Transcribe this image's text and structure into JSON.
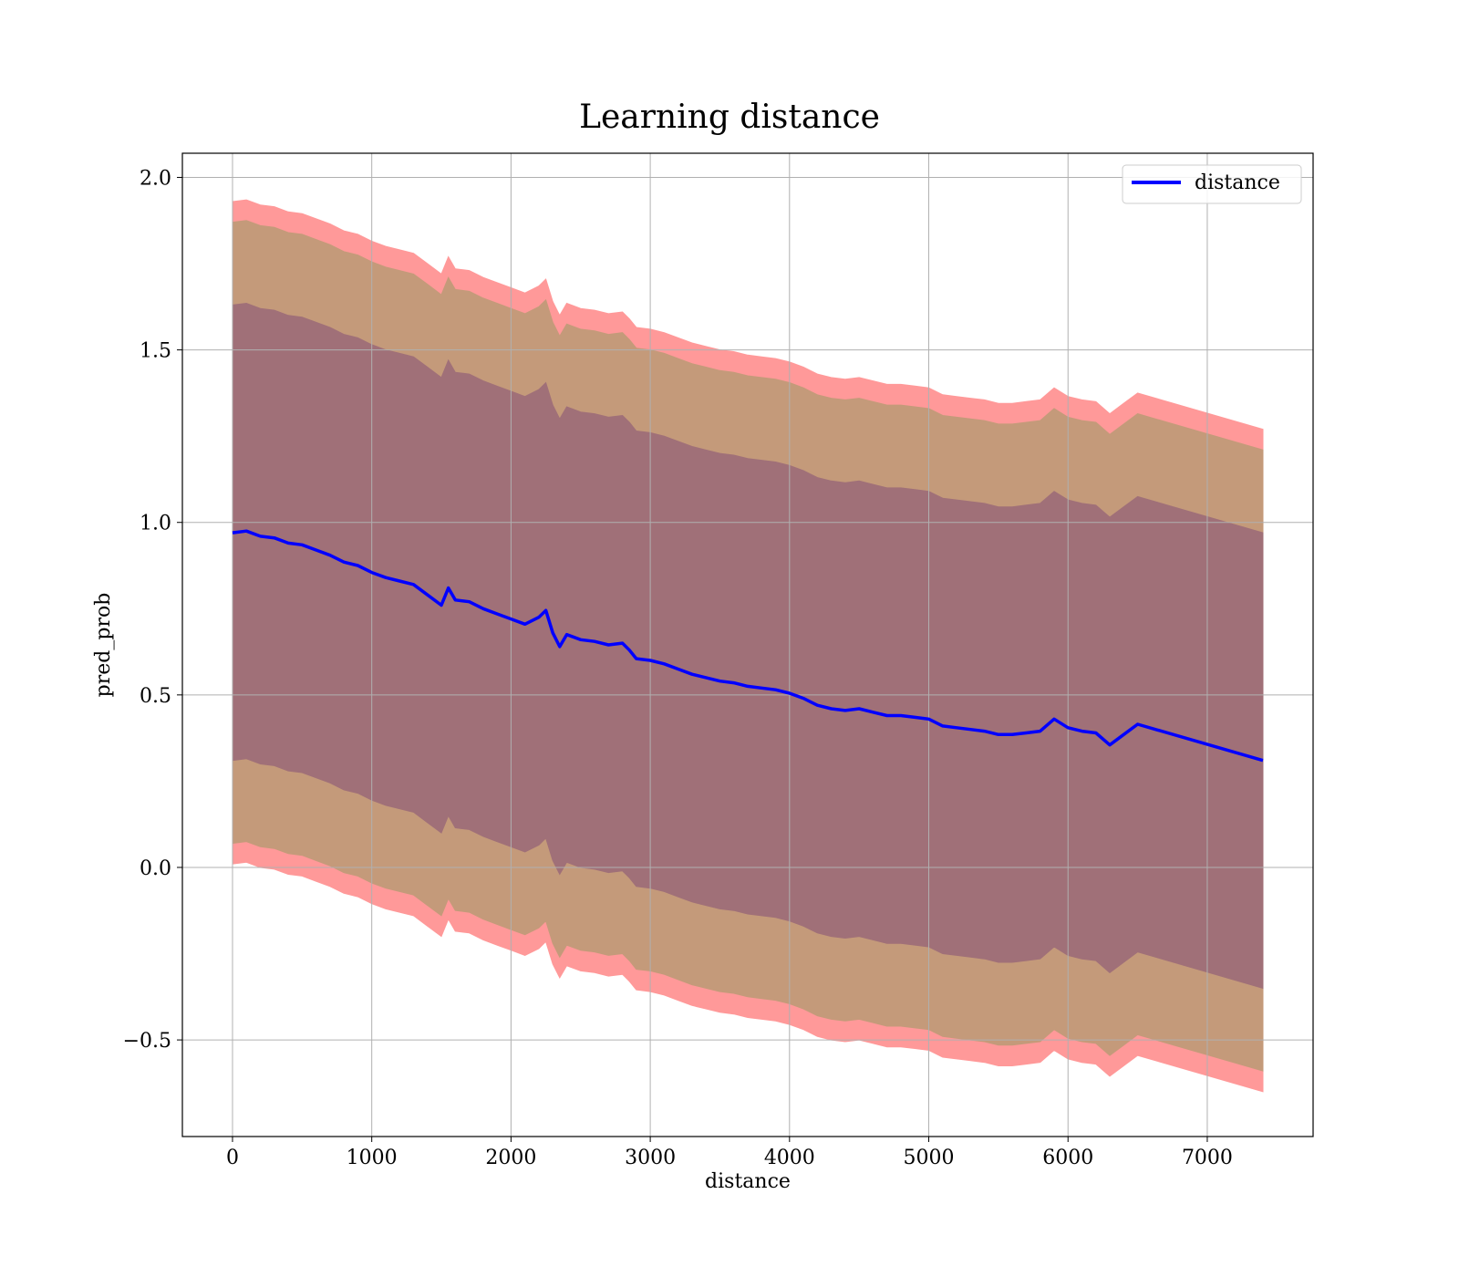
{
  "chart_data": {
    "type": "line",
    "title": "Learning distance",
    "xlabel": "distance",
    "ylabel": "pred_prob",
    "xlim": [
      -360,
      7760
    ],
    "ylim": [
      -0.78,
      2.07
    ],
    "xticks": [
      0,
      1000,
      2000,
      3000,
      4000,
      5000,
      6000,
      7000
    ],
    "yticks": [
      -0.5,
      0.0,
      0.5,
      1.0,
      1.5,
      2.0
    ],
    "xtick_labels": [
      "0",
      "1000",
      "2000",
      "3000",
      "4000",
      "5000",
      "6000",
      "7000"
    ],
    "ytick_labels": [
      "−0.5",
      "0.0",
      "0.5",
      "1.0",
      "1.5",
      "2.0"
    ],
    "grid": true,
    "legend_position": "top-right",
    "series": [
      {
        "name": "distance",
        "color": "#0000ff",
        "x": [
          0,
          100,
          200,
          300,
          400,
          500,
          600,
          700,
          800,
          900,
          1000,
          1100,
          1200,
          1300,
          1400,
          1500,
          1550,
          1600,
          1700,
          1800,
          1900,
          2000,
          2100,
          2200,
          2250,
          2300,
          2350,
          2400,
          2500,
          2600,
          2700,
          2800,
          2850,
          2900,
          3000,
          3100,
          3200,
          3300,
          3400,
          3500,
          3600,
          3700,
          3800,
          3900,
          4000,
          4100,
          4200,
          4300,
          4400,
          4500,
          4600,
          4700,
          4800,
          4900,
          5000,
          5100,
          5200,
          5300,
          5400,
          5500,
          5600,
          5700,
          5800,
          5900,
          6000,
          6100,
          6200,
          6300,
          6400,
          6500,
          7400
        ],
        "values": [
          0.97,
          0.975,
          0.96,
          0.955,
          0.94,
          0.935,
          0.92,
          0.905,
          0.885,
          0.875,
          0.855,
          0.84,
          0.83,
          0.82,
          0.79,
          0.76,
          0.81,
          0.775,
          0.77,
          0.75,
          0.735,
          0.72,
          0.705,
          0.725,
          0.745,
          0.68,
          0.64,
          0.675,
          0.66,
          0.655,
          0.645,
          0.65,
          0.63,
          0.605,
          0.6,
          0.59,
          0.575,
          0.56,
          0.55,
          0.54,
          0.535,
          0.525,
          0.52,
          0.515,
          0.505,
          0.49,
          0.47,
          0.46,
          0.455,
          0.46,
          0.45,
          0.44,
          0.44,
          0.435,
          0.43,
          0.41,
          0.405,
          0.4,
          0.395,
          0.385,
          0.385,
          0.39,
          0.395,
          0.43,
          0.405,
          0.395,
          0.39,
          0.355,
          0.385,
          0.415,
          0.31
        ]
      }
    ],
    "bands": [
      {
        "color": "#ff9999",
        "lower_offset": -0.96,
        "upper_offset": 0.96
      },
      {
        "color": "#c49a7a",
        "lower_offset": -0.9,
        "upper_offset": 0.9
      },
      {
        "color": "#a07078",
        "lower_offset": -0.66,
        "upper_offset": 0.66
      }
    ]
  }
}
